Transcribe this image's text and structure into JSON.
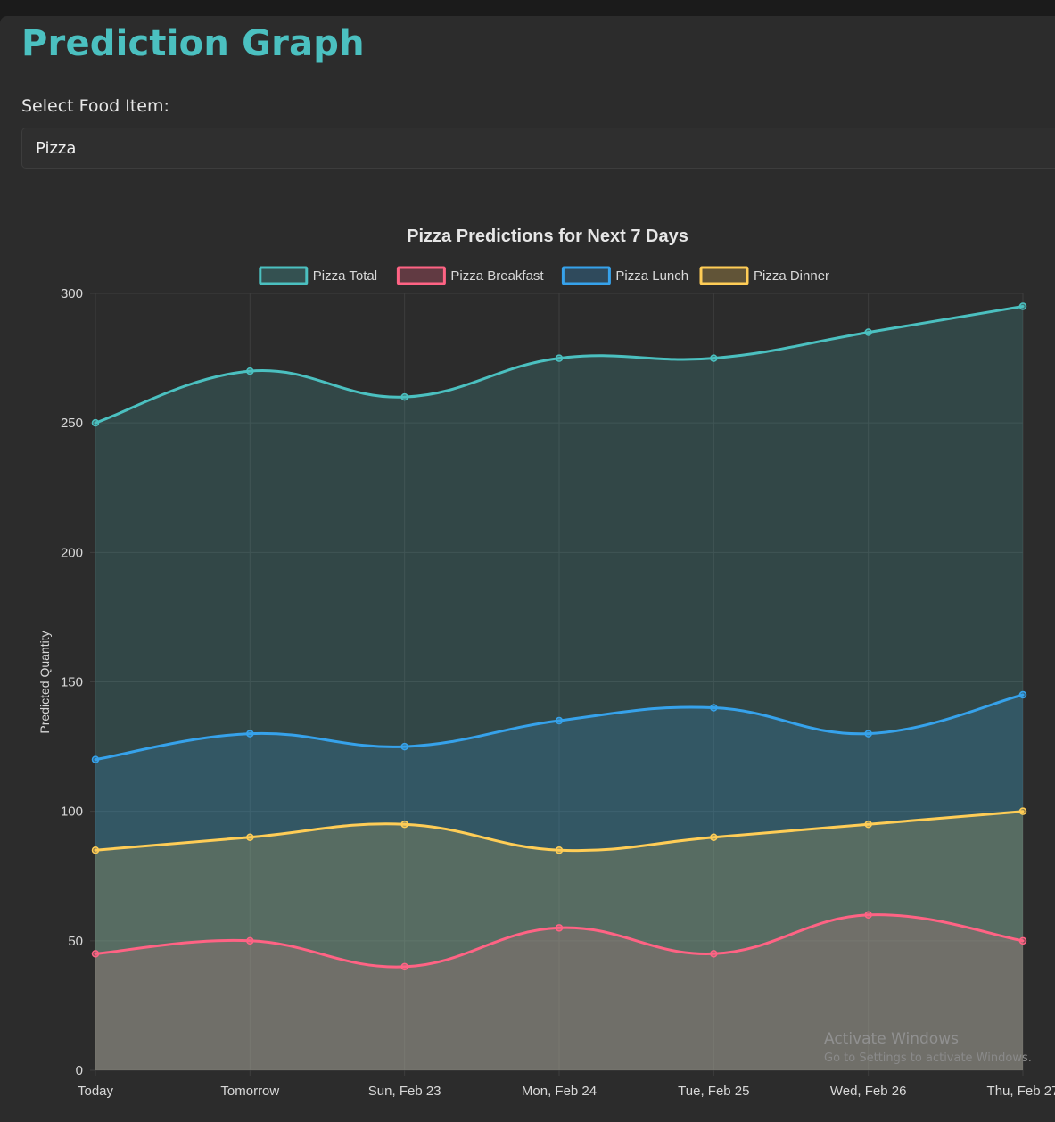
{
  "page": {
    "title": "Prediction Graph",
    "select_label": "Select Food Item:",
    "selected_item": "Pizza"
  },
  "watermark": {
    "line1": "Activate Windows",
    "line2": "Go to Settings to activate Windows."
  },
  "colors": {
    "accent": "#4bc0c0",
    "background": "#2c2c2c"
  },
  "chart_data": {
    "type": "area",
    "title": "Pizza Predictions for Next 7 Days",
    "xlabel": "",
    "ylabel": "Predicted Quantity",
    "ylim": [
      0,
      300
    ],
    "yticks": [
      0,
      50,
      100,
      150,
      200,
      250,
      300
    ],
    "grid": true,
    "legend_position": "top",
    "categories": [
      "Today",
      "Tomorrow",
      "Sun, Feb 23",
      "Mon, Feb 24",
      "Tue, Feb 25",
      "Wed, Feb 26",
      "Thu, Feb 27"
    ],
    "series": [
      {
        "name": "Pizza Total",
        "color": "#4bc0c0",
        "values": [
          250,
          270,
          260,
          275,
          275,
          285,
          295
        ]
      },
      {
        "name": "Pizza Breakfast",
        "color": "#ff6384",
        "values": [
          45,
          50,
          40,
          55,
          45,
          60,
          50
        ]
      },
      {
        "name": "Pizza Lunch",
        "color": "#36a2eb",
        "values": [
          120,
          130,
          125,
          135,
          140,
          130,
          145
        ]
      },
      {
        "name": "Pizza Dinner",
        "color": "#ffcd56",
        "values": [
          85,
          90,
          95,
          85,
          90,
          95,
          100
        ]
      }
    ]
  }
}
